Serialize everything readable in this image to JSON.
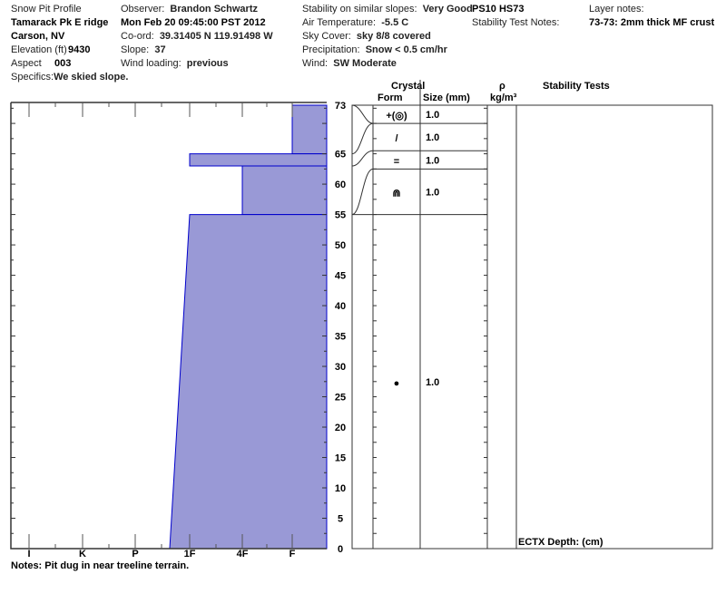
{
  "header": {
    "title": "Snow Pit Profile",
    "location": "Tamarack Pk E ridge",
    "region": "Carson, NV",
    "elevation_label": "Elevation (ft)",
    "elevation": "9430",
    "aspect_label": "Aspect",
    "aspect": "003",
    "specifics_label": "Specifics:",
    "specifics": "We skied slope.",
    "observer_label": "Observer:",
    "observer": "Brandon Schwartz",
    "datetime": "Mon Feb 20 09:45:00 PST 2012",
    "coord_label": "Co-ord:",
    "coord": "39.31405 N 119.91498 W",
    "slope_label": "Slope:",
    "slope": "37",
    "wind_loading_label": "Wind loading:",
    "wind_loading": "previous",
    "stability_label": "Stability on similar slopes:",
    "stability": "Very Good",
    "air_temp_label": "Air Temperature:",
    "air_temp": "-5.5 C",
    "sky_label": "Sky Cover:",
    "sky": "sky 8/8 covered",
    "precip_label": "Precipitation:",
    "precip": "Snow < 0.5 cm/hr",
    "wind_label": "Wind:",
    "wind": "SW Moderate",
    "ps_hs": "PS10 HS73",
    "stability_test_notes_label": "Stability Test Notes:",
    "layer_notes_label": "Layer notes:",
    "layer_notes": "73-73: 2mm thick MF crust"
  },
  "columns": {
    "crystal": "Crystal",
    "form": "Form",
    "size": "Size (mm)",
    "density": "ρ",
    "density_unit": "kg/m³",
    "stability_tests": "Stability Tests"
  },
  "stability_test": "ECTX  Depth: (cm)",
  "notes": "Notes:  Pit dug in near treeline terrain.",
  "chart_data": {
    "type": "area",
    "xlabel": "",
    "ylabel": "",
    "hardness_ticks": [
      "I",
      "K",
      "P",
      "1F",
      "4F",
      "F"
    ],
    "y_ticks": [
      0,
      5,
      10,
      15,
      20,
      25,
      30,
      35,
      40,
      45,
      50,
      55,
      60,
      65,
      73
    ],
    "ylim": [
      0,
      73
    ],
    "fill_color": "#9999d6",
    "line_color": "#0000cc",
    "layers": [
      {
        "top": 73,
        "bottom": 65,
        "hardness_top": "F",
        "hardness_bottom": "F",
        "form": "precipitation-particles-with-rounded-icon",
        "form_text": "+(◎)",
        "size": "1.0"
      },
      {
        "top": 65,
        "bottom": 63,
        "hardness_top": "1F",
        "hardness_bottom": "1F",
        "form": null,
        "size": null
      },
      {
        "top": 63,
        "bottom": 55,
        "hardness_top": "4F",
        "hardness_bottom": "4F",
        "form": null,
        "size": null
      },
      {
        "top": 55,
        "bottom": 0,
        "hardness_top": "1F",
        "hardness_bottom": "1F-",
        "form": "melt-forms-icon",
        "form_text": "●",
        "size": "1.0"
      }
    ],
    "crystal_rows": [
      {
        "top": 73,
        "bottom": 70,
        "form_text": "+(◎)",
        "form": "precipitation-particles-icon",
        "size": "1.0"
      },
      {
        "top": 70,
        "bottom": 65.5,
        "form_text": "/",
        "form": "decomposing-fragments-icon",
        "size": "1.0"
      },
      {
        "top": 65.5,
        "bottom": 62.5,
        "form_text": "=",
        "form": "melt-crust-icon",
        "size": "1.0"
      },
      {
        "top": 62.5,
        "bottom": 55,
        "form_text": "⋒",
        "form": "faceted-rounded-icon",
        "size": "1.0"
      },
      {
        "top": 55,
        "bottom": 0,
        "form_text": "●",
        "form": "melt-forms-icon",
        "size": "1.0",
        "label_depth": 27.5
      }
    ]
  }
}
